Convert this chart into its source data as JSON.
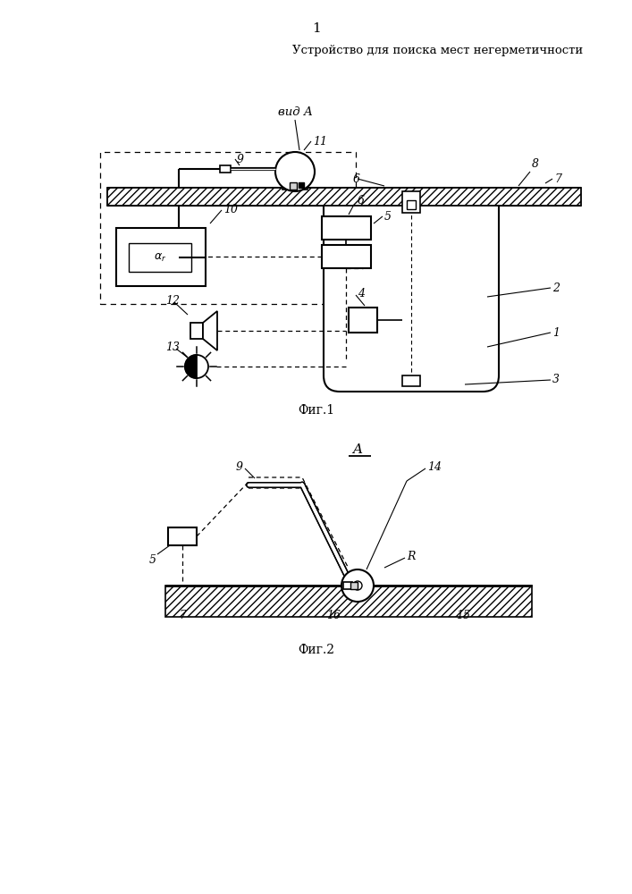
{
  "title": "Устройство для поиска мест негерметичности",
  "page_number": "1",
  "fig1_caption": "Фиг.1",
  "fig2_caption": "Фиг.2",
  "vid_a_label": "вид А",
  "bg": "#ffffff",
  "lc": "#000000"
}
